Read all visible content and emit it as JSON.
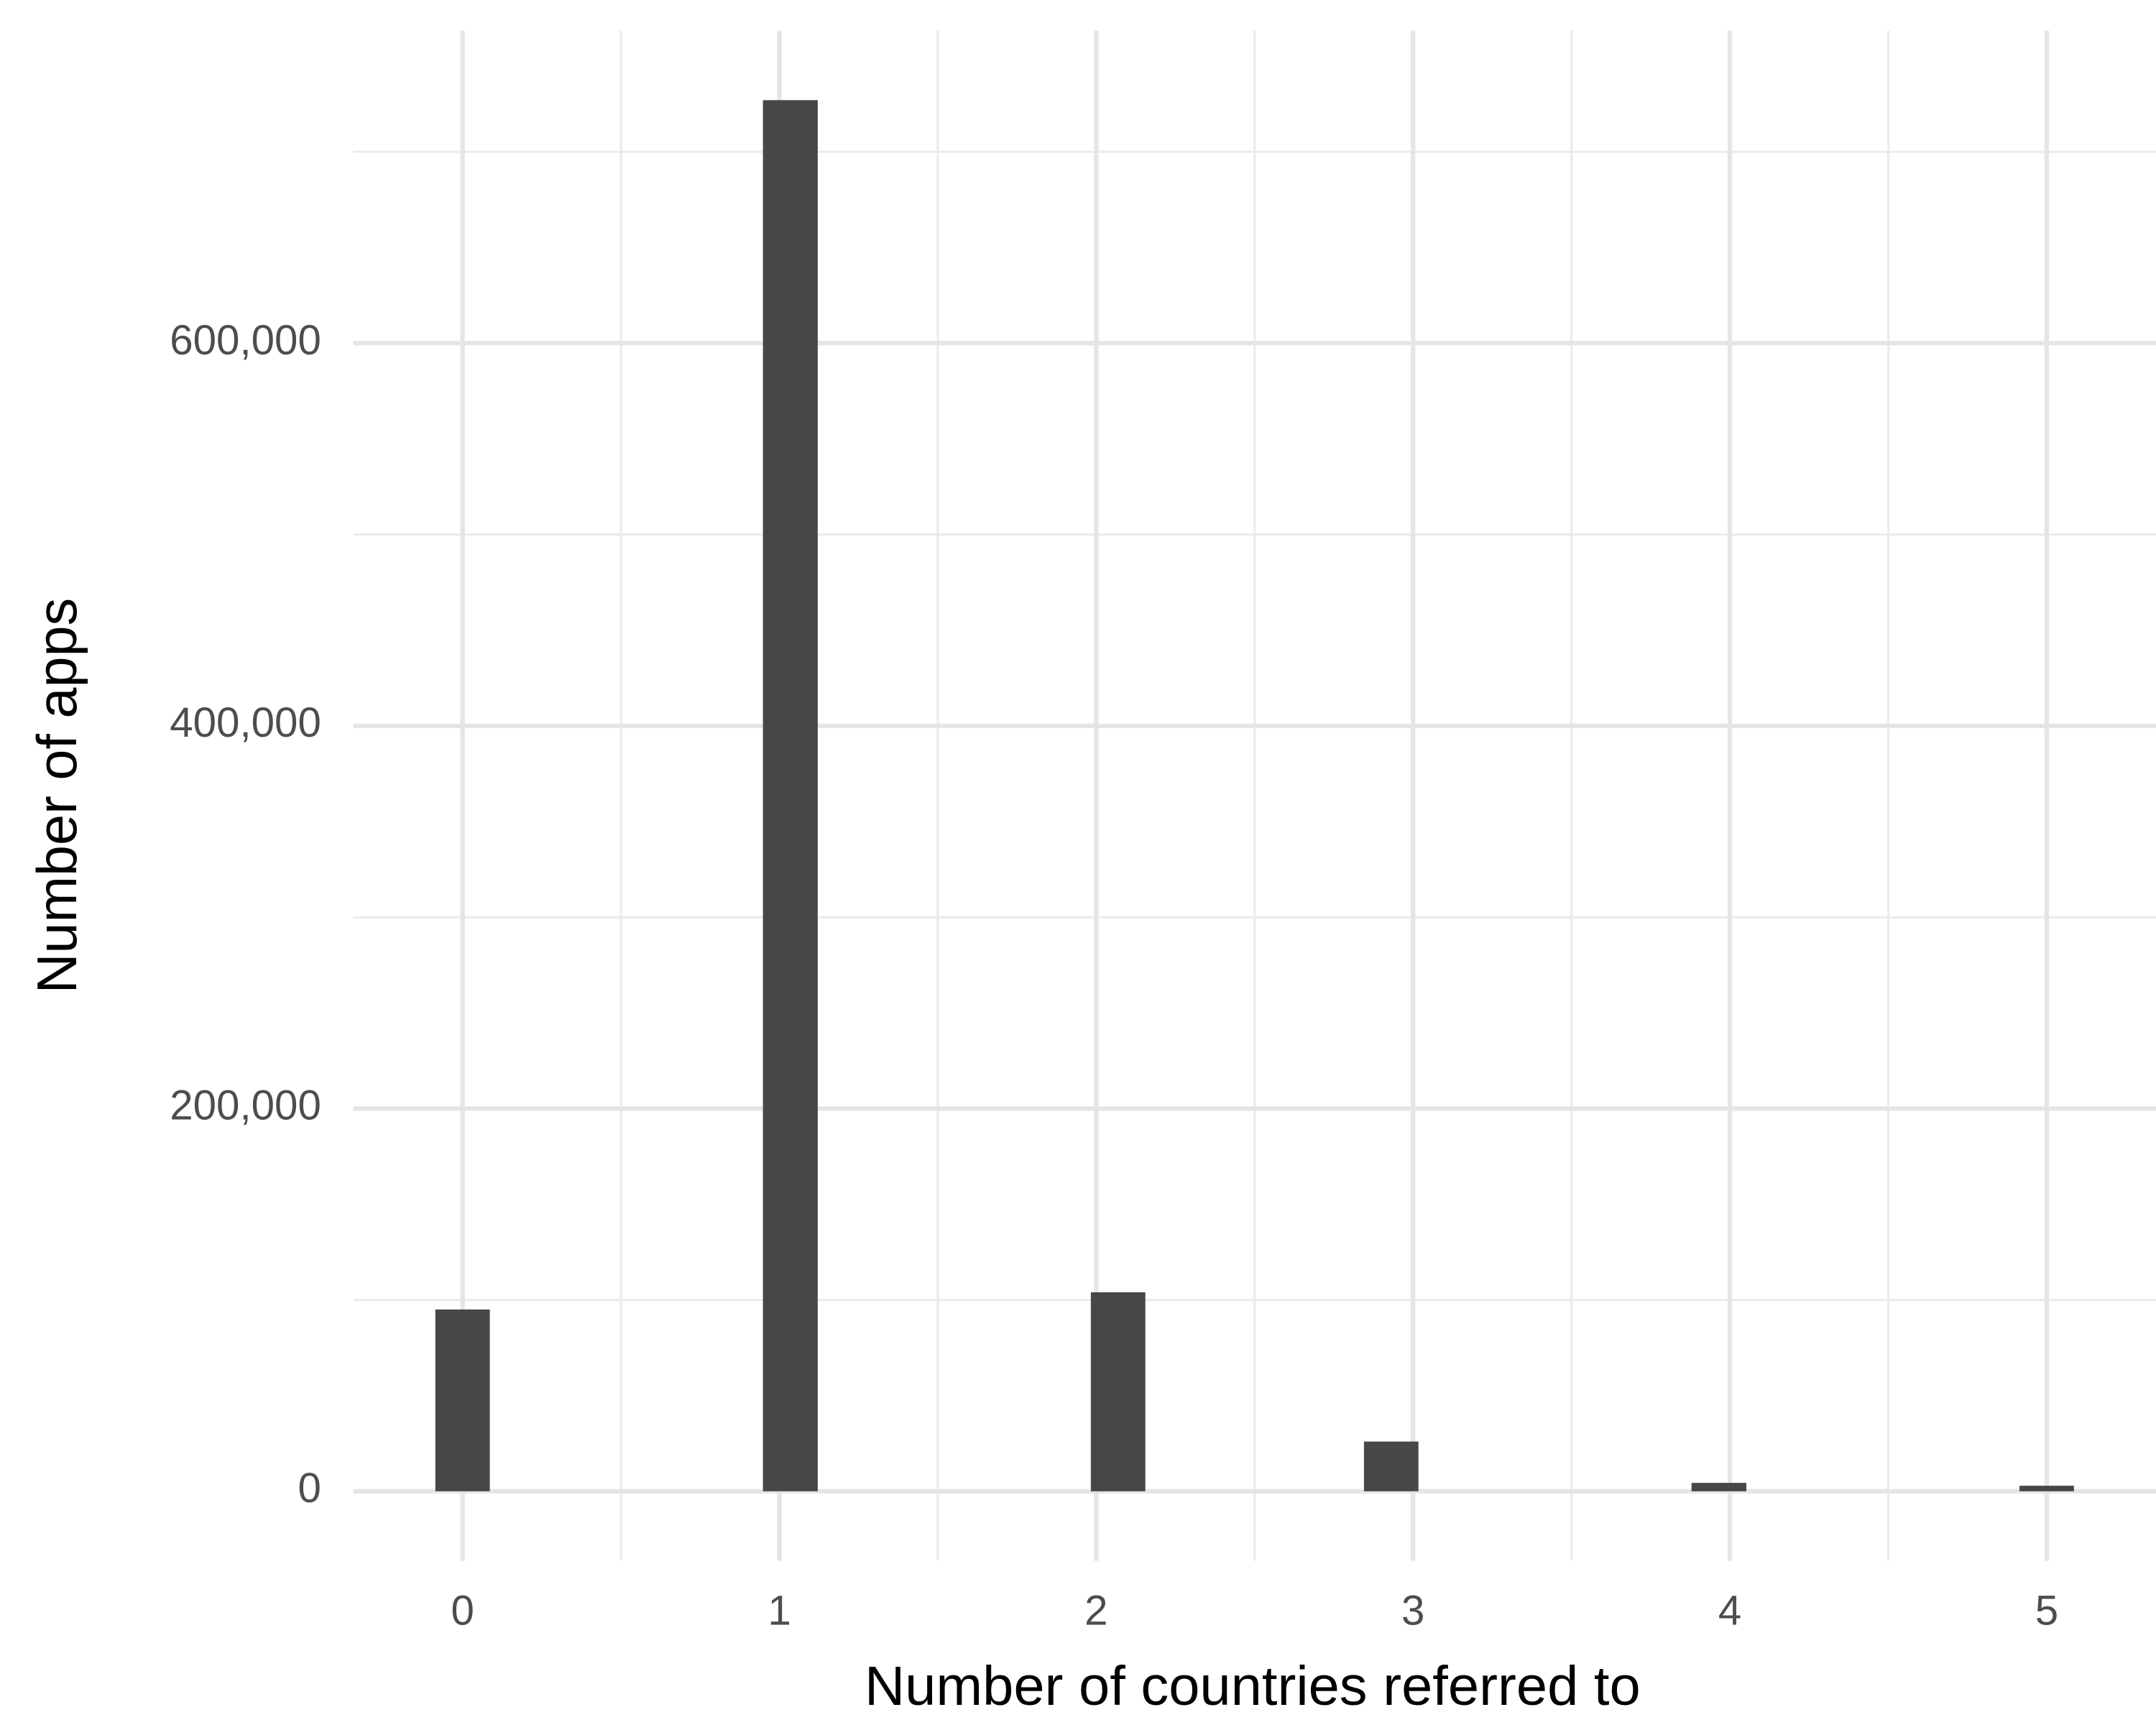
{
  "chart_data": {
    "type": "histogram",
    "x_label": "Number of countries referred to",
    "y_label": "Number of apps",
    "bins": [
      -0.086,
      0.086,
      0.259,
      0.431,
      0.603,
      0.776,
      0.948,
      1.121,
      1.293,
      1.466,
      1.638,
      1.81,
      1.983,
      2.155,
      2.328,
      2.5,
      2.672,
      2.845,
      3.017,
      3.19,
      3.362,
      3.534,
      3.707,
      3.879,
      4.052,
      4.224,
      4.397,
      4.569,
      4.741,
      4.914,
      5.086
    ],
    "values": [
      95000,
      0,
      0,
      0,
      0,
      0,
      727000,
      0,
      0,
      0,
      0,
      0,
      104000,
      0,
      0,
      0,
      0,
      26000,
      0,
      0,
      0,
      0,
      0,
      4400,
      0,
      0,
      0,
      0,
      0,
      2900
    ],
    "color": "#474747",
    "xlim": [
      -0.345,
      5.345
    ],
    "ylim": [
      -36350,
      763350
    ],
    "xticks": [
      0,
      1,
      2,
      3,
      4,
      5
    ],
    "xminorticks": [
      0.5,
      1.5,
      2.5,
      3.5,
      4.5
    ],
    "yticks": [
      0,
      {
        "value": 200000,
        "label": "200,000"
      },
      {
        "value": 400000,
        "label": "400,000"
      },
      {
        "value": 600000,
        "label": "600,000"
      }
    ],
    "yminorticks": [
      100000,
      300000,
      500000,
      700000
    ],
    "grid": true
  }
}
